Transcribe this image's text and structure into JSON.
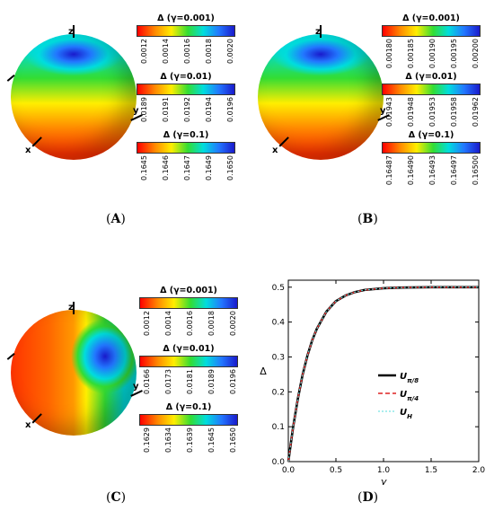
{
  "panels": {
    "A": {
      "label": "A",
      "axes": {
        "x": "x",
        "y": "y",
        "z": "z"
      },
      "colorbars": [
        {
          "title": "Δ (γ=0.001)",
          "ticks": [
            "0.0012",
            "0.0014",
            "0.0016",
            "0.0018",
            "0.0020"
          ]
        },
        {
          "title": "Δ (γ=0.01)",
          "ticks": [
            "0.0189",
            "0.0191",
            "0.0192",
            "0.0194",
            "0.0196"
          ]
        },
        {
          "title": "Δ (γ=0.1)",
          "ticks": [
            "0.1645",
            "0.1646",
            "0.1647",
            "0.1649",
            "0.1650"
          ]
        }
      ]
    },
    "B": {
      "label": "B",
      "axes": {
        "x": "x",
        "y": "y",
        "z": "z"
      },
      "colorbars": [
        {
          "title": "Δ (γ=0.001)",
          "ticks": [
            "0.00180",
            "0.00185",
            "0.00190",
            "0.00195",
            "0.00200"
          ]
        },
        {
          "title": "Δ (γ=0.01)",
          "ticks": [
            "0.01943",
            "0.01948",
            "0.01953",
            "0.01958",
            "0.01962"
          ]
        },
        {
          "title": "Δ (γ=0.1)",
          "ticks": [
            "0.16487",
            "0.16490",
            "0.16493",
            "0.16497",
            "0.16500"
          ]
        }
      ]
    },
    "C": {
      "label": "C",
      "axes": {
        "x": "x",
        "y": "y",
        "z": "z"
      },
      "colorbars": [
        {
          "title": "Δ (γ=0.001)",
          "ticks": [
            "0.0012",
            "0.0014",
            "0.0016",
            "0.0018",
            "0.0020"
          ]
        },
        {
          "title": "Δ (γ=0.01)",
          "ticks": [
            "0.0166",
            "0.0173",
            "0.0181",
            "0.0189",
            "0.0196"
          ]
        },
        {
          "title": "Δ (γ=0.1)",
          "ticks": [
            "0.1629",
            "0.1634",
            "0.1639",
            "0.1645",
            "0.1650"
          ]
        }
      ]
    },
    "D": {
      "label": "D"
    }
  },
  "chart_data": {
    "type": "line",
    "xlabel": "γ",
    "ylabel": "Δ",
    "xlim": [
      0,
      2.0
    ],
    "ylim": [
      0,
      0.52
    ],
    "xticks": [
      "0.0",
      "0.5",
      "1.0",
      "1.5",
      "2.0"
    ],
    "yticks": [
      "0.0",
      "0.1",
      "0.2",
      "0.3",
      "0.4",
      "0.5"
    ],
    "legend_position": "center-right",
    "series": [
      {
        "name": "U_{π/8}",
        "color": "#000000",
        "style": "solid",
        "x": [
          0,
          0.05,
          0.1,
          0.15,
          0.2,
          0.25,
          0.3,
          0.4,
          0.5,
          0.6,
          0.7,
          0.8,
          1.0,
          1.2,
          1.5,
          2.0
        ],
        "y": [
          0,
          0.098,
          0.18,
          0.249,
          0.303,
          0.347,
          0.381,
          0.43,
          0.46,
          0.476,
          0.486,
          0.492,
          0.497,
          0.499,
          0.5,
          0.5
        ]
      },
      {
        "name": "U_{π/4}",
        "color": "#dd2222",
        "style": "dashed",
        "x": [
          0,
          0.05,
          0.1,
          0.15,
          0.2,
          0.25,
          0.3,
          0.4,
          0.5,
          0.6,
          0.7,
          0.8,
          1.0,
          1.2,
          1.5,
          2.0
        ],
        "y": [
          0,
          0.098,
          0.18,
          0.249,
          0.303,
          0.347,
          0.381,
          0.43,
          0.46,
          0.476,
          0.486,
          0.492,
          0.497,
          0.499,
          0.5,
          0.5
        ]
      },
      {
        "name": "U_H",
        "color": "#55dddd",
        "style": "dotted",
        "x": [
          0,
          0.05,
          0.1,
          0.15,
          0.2,
          0.25,
          0.3,
          0.4,
          0.5,
          0.6,
          0.7,
          0.8,
          1.0,
          1.2,
          1.5,
          2.0
        ],
        "y": [
          0,
          0.098,
          0.18,
          0.249,
          0.303,
          0.347,
          0.381,
          0.43,
          0.46,
          0.476,
          0.486,
          0.492,
          0.497,
          0.499,
          0.5,
          0.5
        ]
      }
    ]
  }
}
